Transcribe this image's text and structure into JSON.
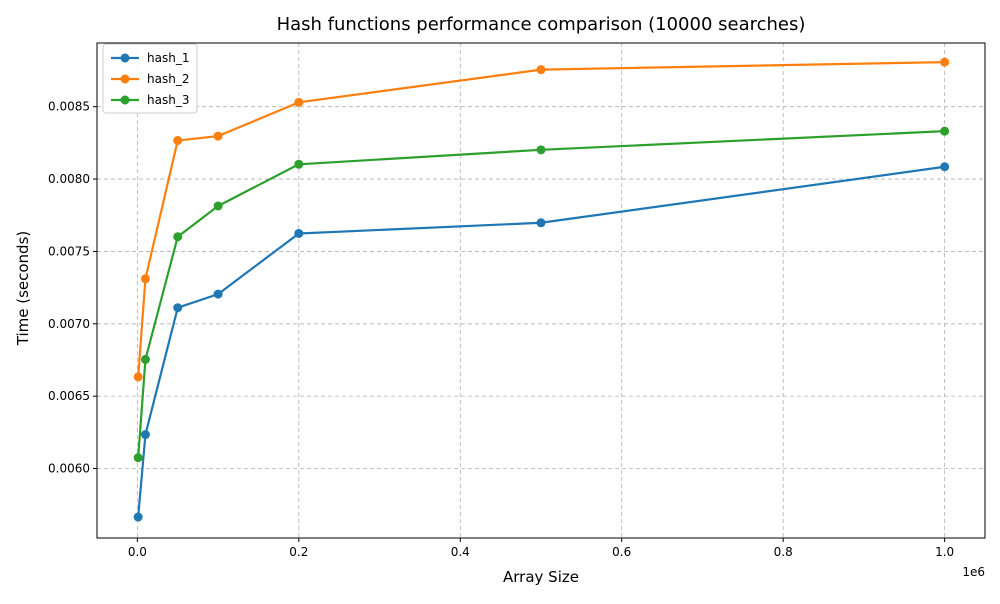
{
  "chart_data": {
    "type": "line",
    "title": "Hash functions performance comparison (10000 searches)",
    "xlabel": "Array Size",
    "ylabel": "Time (seconds)",
    "x_offset_label": "1e6",
    "xlim": [
      -0.05,
      1.05
    ],
    "ylim": [
      0.00552,
      0.00894
    ],
    "x_ticks": [
      0.0,
      0.2,
      0.4,
      0.6,
      0.8,
      1.0
    ],
    "x_tick_labels": [
      "0.0",
      "0.2",
      "0.4",
      "0.6",
      "0.8",
      "1.0"
    ],
    "y_ticks": [
      0.006,
      0.0065,
      0.007,
      0.0075,
      0.008,
      0.0085
    ],
    "y_tick_labels": [
      "0.0060",
      "0.0065",
      "0.0070",
      "0.0075",
      "0.0080",
      "0.0085"
    ],
    "grid": true,
    "legend_position": "top-left",
    "x": [
      0.001,
      0.01,
      0.05,
      0.1,
      0.2,
      0.5,
      1.0
    ],
    "series": [
      {
        "name": "hash_1",
        "color": "#1f77b4",
        "values": [
          0.005665,
          0.006235,
          0.007111,
          0.007205,
          0.007624,
          0.007698,
          0.008085
        ]
      },
      {
        "name": "hash_2",
        "color": "#ff7f0e",
        "values": [
          0.006633,
          0.007311,
          0.008266,
          0.008297,
          0.00853,
          0.008756,
          0.008808
        ]
      },
      {
        "name": "hash_3",
        "color": "#2ca02c",
        "values": [
          0.006075,
          0.006754,
          0.007601,
          0.007814,
          0.008102,
          0.008202,
          0.008331
        ]
      }
    ]
  }
}
